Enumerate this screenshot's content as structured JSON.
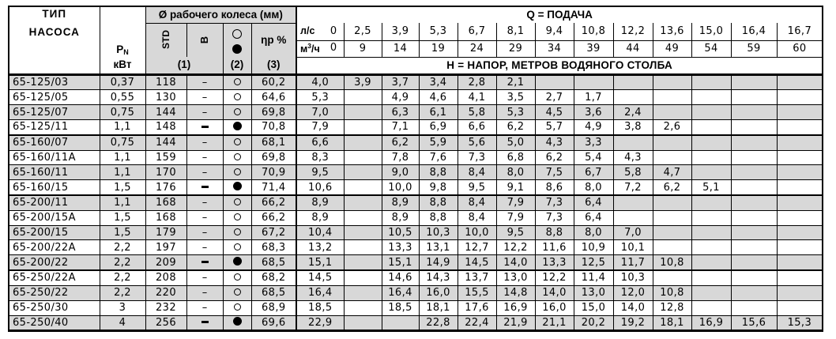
{
  "header": {
    "pump_type_line1": "ТИП",
    "pump_type_line2": "НАСОСА",
    "power_symbol": "P",
    "power_symbol_sub": "N",
    "power_unit": "кВт",
    "impeller_group_label": "Ø рабочего колеса (мм)",
    "impeller_std_label": "STD",
    "impeller_b_label": "В",
    "note_1": "(1)",
    "note_2": "(2)",
    "note_3": "(3)",
    "efficiency_label": "ηp %",
    "flow_group_label": "Q = ПОДАЧА",
    "flow_ls_label": "л/с",
    "flow_m3h_label": "м³/ч",
    "flow_ls_values": [
      "0",
      "2,5",
      "3,9",
      "5,3",
      "6,7",
      "8,1",
      "9,4",
      "10,8",
      "12,2",
      "13,6",
      "15,0",
      "16,4",
      "16,7"
    ],
    "flow_m3h_values": [
      "0",
      "9",
      "14",
      "19",
      "24",
      "29",
      "34",
      "39",
      "44",
      "49",
      "54",
      "59",
      "60"
    ],
    "head_row_label": "Н = НАПОР, МЕТРОВ ВОДЯНОГО СТОЛБА"
  },
  "rows": [
    {
      "type": "65-125/03",
      "power": "0,37",
      "std": "118",
      "b_dash": "-",
      "marker": "open",
      "eff": "60,2",
      "shaded": true,
      "group_end": false,
      "heads": [
        "4,0",
        "3,9",
        "3,7",
        "3,4",
        "2,8",
        "2,1",
        "",
        "",
        "",
        "",
        "",
        "",
        ""
      ]
    },
    {
      "type": "65-125/05",
      "power": "0,55",
      "std": "130",
      "b_dash": "-",
      "marker": "open",
      "eff": "64,6",
      "shaded": false,
      "group_end": false,
      "heads": [
        "5,3",
        "",
        "4,9",
        "4,6",
        "4,1",
        "3,5",
        "2,7",
        "1,7",
        "",
        "",
        "",
        "",
        ""
      ]
    },
    {
      "type": "65-125/07",
      "power": "0,75",
      "std": "144",
      "b_dash": "-",
      "marker": "open",
      "eff": "69,8",
      "shaded": true,
      "group_end": false,
      "heads": [
        "7,0",
        "",
        "6,3",
        "6,1",
        "5,8",
        "5,3",
        "4,5",
        "3,6",
        "2,4",
        "",
        "",
        "",
        ""
      ]
    },
    {
      "type": "65-125/11",
      "power": "1,1",
      "std": "148",
      "b_dash": "-",
      "marker": "filled",
      "eff": "70,8",
      "shaded": false,
      "group_end": true,
      "heads": [
        "7,9",
        "",
        "7,1",
        "6,9",
        "6,6",
        "6,2",
        "5,7",
        "4,9",
        "3,8",
        "2,6",
        "",
        "",
        ""
      ]
    },
    {
      "type": "65-160/07",
      "power": "0,75",
      "std": "144",
      "b_dash": "-",
      "marker": "open",
      "eff": "68,1",
      "shaded": true,
      "group_end": false,
      "heads": [
        "6,6",
        "",
        "6,2",
        "5,9",
        "5,6",
        "5,0",
        "4,3",
        "3,3",
        "",
        "",
        "",
        "",
        ""
      ]
    },
    {
      "type": "65-160/11A",
      "power": "1,1",
      "std": "159",
      "b_dash": "-",
      "marker": "open",
      "eff": "69,8",
      "shaded": false,
      "group_end": false,
      "heads": [
        "8,3",
        "",
        "7,8",
        "7,6",
        "7,3",
        "6,8",
        "6,2",
        "5,4",
        "4,3",
        "",
        "",
        "",
        ""
      ]
    },
    {
      "type": "65-160/11",
      "power": "1,1",
      "std": "170",
      "b_dash": "-",
      "marker": "open",
      "eff": "70,9",
      "shaded": true,
      "group_end": false,
      "heads": [
        "9,5",
        "",
        "9,0",
        "8,8",
        "8,4",
        "8,0",
        "7,5",
        "6,7",
        "5,8",
        "4,7",
        "",
        "",
        ""
      ]
    },
    {
      "type": "65-160/15",
      "power": "1,5",
      "std": "176",
      "b_dash": "-",
      "marker": "filled",
      "eff": "71,4",
      "shaded": false,
      "group_end": true,
      "heads": [
        "10,6",
        "",
        "10,0",
        "9,8",
        "9,5",
        "9,1",
        "8,6",
        "8,0",
        "7,2",
        "6,2",
        "5,1",
        "",
        ""
      ]
    },
    {
      "type": "65-200/11",
      "power": "1,1",
      "std": "168",
      "b_dash": "-",
      "marker": "open",
      "eff": "66,2",
      "shaded": true,
      "group_end": false,
      "heads": [
        "8,9",
        "",
        "8,9",
        "8,8",
        "8,4",
        "7,9",
        "7,3",
        "6,4",
        "",
        "",
        "",
        "",
        ""
      ]
    },
    {
      "type": "65-200/15A",
      "power": "1,5",
      "std": "168",
      "b_dash": "-",
      "marker": "open",
      "eff": "66,2",
      "shaded": false,
      "group_end": false,
      "heads": [
        "8,9",
        "",
        "8,9",
        "8,8",
        "8,4",
        "7,9",
        "7,3",
        "6,4",
        "",
        "",
        "",
        "",
        ""
      ]
    },
    {
      "type": "65-200/15",
      "power": "1,5",
      "std": "179",
      "b_dash": "-",
      "marker": "open",
      "eff": "67,2",
      "shaded": true,
      "group_end": false,
      "heads": [
        "10,4",
        "",
        "10,5",
        "10,3",
        "10,0",
        "9,5",
        "8,8",
        "8,0",
        "7,0",
        "",
        "",
        "",
        ""
      ]
    },
    {
      "type": "65-200/22A",
      "power": "2,2",
      "std": "197",
      "b_dash": "-",
      "marker": "open",
      "eff": "68,3",
      "shaded": false,
      "group_end": false,
      "heads": [
        "13,2",
        "",
        "13,3",
        "13,1",
        "12,7",
        "12,2",
        "11,6",
        "10,9",
        "10,1",
        "",
        "",
        "",
        ""
      ]
    },
    {
      "type": "65-200/22",
      "power": "2,2",
      "std": "209",
      "b_dash": "-",
      "marker": "filled",
      "eff": "68,5",
      "shaded": true,
      "group_end": true,
      "heads": [
        "15,1",
        "",
        "15,1",
        "14,9",
        "14,5",
        "14,0",
        "13,3",
        "12,5",
        "11,7",
        "10,8",
        "",
        "",
        ""
      ]
    },
    {
      "type": "65-250/22A",
      "power": "2,2",
      "std": "208",
      "b_dash": "-",
      "marker": "open",
      "eff": "68,2",
      "shaded": false,
      "group_end": false,
      "heads": [
        "14,5",
        "",
        "14,6",
        "14,3",
        "13,7",
        "13,0",
        "12,2",
        "11,4",
        "10,3",
        "",
        "",
        "",
        ""
      ]
    },
    {
      "type": "65-250/22",
      "power": "2,2",
      "std": "220",
      "b_dash": "-",
      "marker": "open",
      "eff": "68,5",
      "shaded": true,
      "group_end": false,
      "heads": [
        "16,4",
        "",
        "16,4",
        "16,0",
        "15,5",
        "14,8",
        "14,0",
        "13,0",
        "12,0",
        "10,8",
        "",
        "",
        ""
      ]
    },
    {
      "type": "65-250/30",
      "power": "3",
      "std": "232",
      "b_dash": "-",
      "marker": "open",
      "eff": "68,9",
      "shaded": false,
      "group_end": false,
      "heads": [
        "18,5",
        "",
        "18,5",
        "18,1",
        "17,6",
        "16,9",
        "16,0",
        "15,0",
        "14,0",
        "12,8",
        "",
        "",
        ""
      ]
    },
    {
      "type": "65-250/40",
      "power": "4",
      "std": "256",
      "b_dash": "-",
      "marker": "filled",
      "eff": "69,6",
      "shaded": true,
      "group_end": false,
      "heads": [
        "22,9",
        "",
        "",
        "22,8",
        "22,4",
        "21,9",
        "21,1",
        "20,2",
        "19,2",
        "18,1",
        "16,9",
        "15,6",
        "15,3"
      ]
    }
  ],
  "colors": {
    "row_shade": "#d8d8d8",
    "grid": "#000000",
    "page_bg": "#ffffff"
  }
}
